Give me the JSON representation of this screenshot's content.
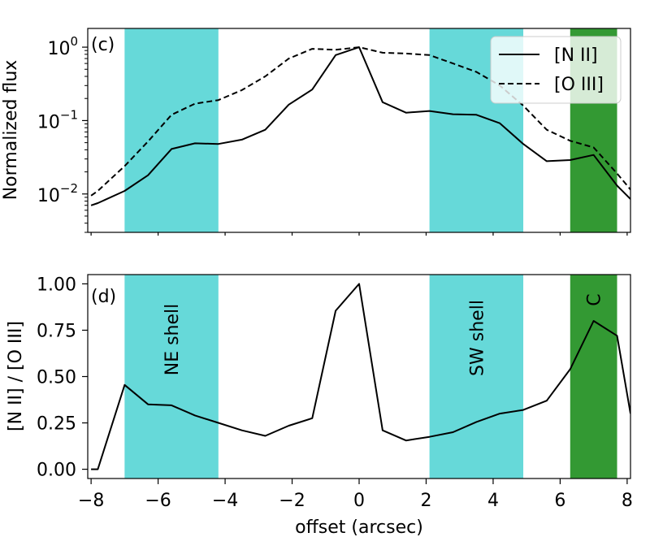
{
  "chart_data": [
    {
      "panel": "(c)",
      "type": "line",
      "yscale": "log",
      "xlabel": "offset (arcsec)",
      "ylabel": "Normalized flux",
      "xlim": [
        -8.1,
        8.1
      ],
      "ylim": [
        0.003,
        1.8
      ],
      "y_ticks": [
        {
          "value": 0.01,
          "base": "10",
          "exp": "−2"
        },
        {
          "value": 0.1,
          "base": "10",
          "exp": "−1"
        },
        {
          "value": 1,
          "base": "10",
          "exp": "0"
        }
      ],
      "legend": {
        "placement": "top-right",
        "entries": [
          "[N II]",
          "[O III]"
        ]
      },
      "series": [
        {
          "name": "[N II]",
          "style": "solid",
          "x": [
            -8.0,
            -7.8,
            -7.0,
            -6.3,
            -5.6,
            -4.9,
            -4.2,
            -3.5,
            -2.8,
            -2.1,
            -1.4,
            -0.7,
            0.0,
            0.7,
            1.4,
            2.1,
            2.8,
            3.5,
            4.2,
            4.9,
            5.6,
            6.3,
            7.0,
            7.7,
            8.1
          ],
          "values": [
            0.007,
            0.0075,
            0.011,
            0.018,
            0.041,
            0.049,
            0.048,
            0.055,
            0.075,
            0.165,
            0.265,
            0.78,
            1.0,
            0.178,
            0.128,
            0.135,
            0.122,
            0.12,
            0.092,
            0.048,
            0.028,
            0.029,
            0.034,
            0.013,
            0.0085
          ]
        },
        {
          "name": "[O III]",
          "style": "dashed",
          "x": [
            -8.0,
            -7.8,
            -7.0,
            -6.3,
            -5.6,
            -4.9,
            -4.2,
            -3.5,
            -2.8,
            -2.1,
            -1.4,
            -0.7,
            0.0,
            0.7,
            1.4,
            2.1,
            2.8,
            3.5,
            4.2,
            4.9,
            5.6,
            6.3,
            7.0,
            7.7,
            8.1
          ],
          "values": [
            0.0095,
            0.011,
            0.024,
            0.052,
            0.12,
            0.17,
            0.19,
            0.26,
            0.4,
            0.7,
            0.95,
            0.92,
            1.0,
            0.84,
            0.82,
            0.78,
            0.6,
            0.46,
            0.3,
            0.16,
            0.075,
            0.053,
            0.043,
            0.019,
            0.0115
          ]
        }
      ]
    },
    {
      "panel": "(d)",
      "type": "line",
      "xlabel": "offset (arcsec)",
      "ylabel": "[N II] / [O III]",
      "xlim": [
        -8.1,
        8.1
      ],
      "ylim": [
        -0.05,
        1.05
      ],
      "x_ticks": [
        "−8",
        "−6",
        "−4",
        "−2",
        "0",
        "2",
        "4",
        "6",
        "8"
      ],
      "y_ticks": [
        "0.00",
        "0.25",
        "0.50",
        "0.75",
        "1.00"
      ],
      "series": [
        {
          "name": "[N II] / [O III]",
          "style": "solid",
          "x": [
            -8.0,
            -7.8,
            -7.0,
            -6.3,
            -5.6,
            -4.9,
            -4.2,
            -3.5,
            -2.8,
            -2.1,
            -1.4,
            -0.7,
            0.0,
            0.7,
            1.4,
            2.1,
            2.8,
            3.5,
            4.2,
            4.9,
            5.6,
            6.3,
            7.0,
            7.7,
            8.1
          ],
          "values": [
            0.0,
            0.0,
            0.455,
            0.35,
            0.345,
            0.29,
            0.25,
            0.21,
            0.18,
            0.235,
            0.275,
            0.855,
            1.0,
            0.21,
            0.155,
            0.175,
            0.2,
            0.255,
            0.3,
            0.32,
            0.37,
            0.54,
            0.8,
            0.72,
            0.3
          ]
        }
      ]
    }
  ],
  "regions": [
    {
      "label": "NE shell",
      "x_start": -7.0,
      "x_end": -4.2,
      "color": "#66d9d9"
    },
    {
      "label": "SW shell",
      "x_start": 2.1,
      "x_end": 4.9,
      "color": "#66d9d9"
    },
    {
      "label": "C",
      "x_start": 6.3,
      "x_end": 7.7,
      "color": "#339933"
    }
  ],
  "colors": {
    "line": "#000000",
    "frame": "#000000"
  }
}
